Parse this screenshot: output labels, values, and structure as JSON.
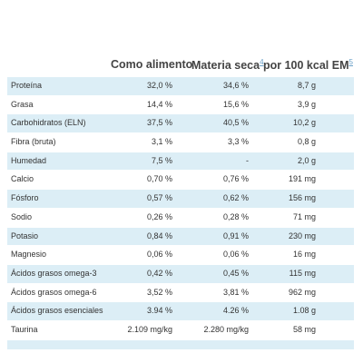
{
  "headers": {
    "col1": "Como alimento",
    "col2": "Materia seca",
    "col2_sup": "4",
    "col3": "por 100 kcal EM",
    "col3_sup": "5"
  },
  "rows": [
    {
      "name": "Proteína",
      "alimento": "32,0 %",
      "seca": "34,6 %",
      "kcal": "8,7 g"
    },
    {
      "name": "Grasa",
      "alimento": "14,4 %",
      "seca": "15,6 %",
      "kcal": "3,9 g"
    },
    {
      "name": "Carbohidratos (ELN)",
      "alimento": "37,5 %",
      "seca": "40,5 %",
      "kcal": "10,2 g"
    },
    {
      "name": "Fibra (bruta)",
      "alimento": "3,1 %",
      "seca": "3,3 %",
      "kcal": "0,8 g"
    },
    {
      "name": "Humedad",
      "alimento": "7,5 %",
      "seca": "-",
      "kcal": "2,0 g"
    },
    {
      "name": "Calcio",
      "alimento": "0,70 %",
      "seca": "0,76 %",
      "kcal": "191 mg"
    },
    {
      "name": "Fósforo",
      "alimento": "0,57 %",
      "seca": "0,62 %",
      "kcal": "156 mg"
    },
    {
      "name": "Sodio",
      "alimento": "0,26 %",
      "seca": "0,28 %",
      "kcal": "71 mg"
    },
    {
      "name": "Potasio",
      "alimento": "0,84 %",
      "seca": "0,91 %",
      "kcal": "230 mg"
    },
    {
      "name": "Magnesio",
      "alimento": "0,06 %",
      "seca": "0,06 %",
      "kcal": "16 mg"
    },
    {
      "name": "Ácidos grasos omega-3",
      "alimento": "0,42 %",
      "seca": "0,45 %",
      "kcal": "115 mg"
    },
    {
      "name": "Ácidos grasos omega-6",
      "alimento": "3,52 %",
      "seca": "3,81 %",
      "kcal": "962 mg"
    },
    {
      "name": "Ácidos grasos esenciales",
      "alimento": "3.94 %",
      "seca": "4.26 %",
      "kcal": "1.08 g"
    },
    {
      "name": "Taurina",
      "alimento": "2.109 mg/kg",
      "seca": "2.280 mg/kg",
      "kcal": "58 mg"
    }
  ]
}
